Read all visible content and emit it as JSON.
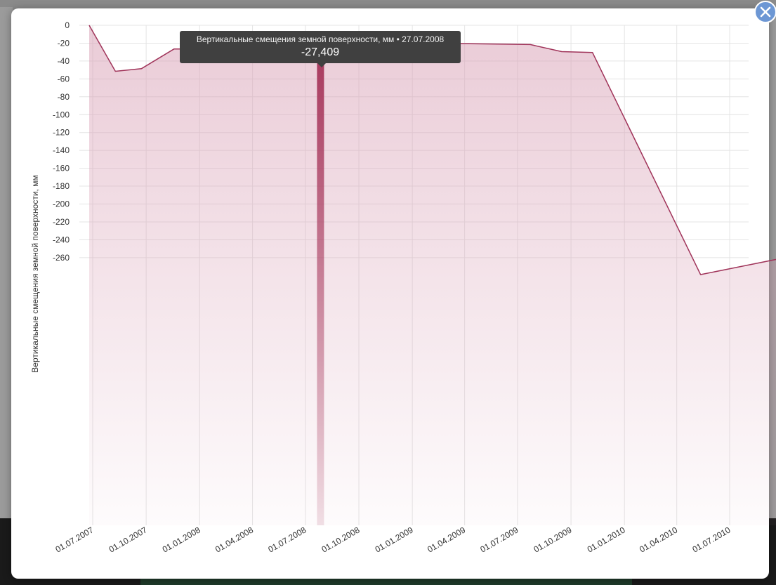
{
  "colors": {
    "series_line": "#a0345a",
    "series_fill": "#dda5bb",
    "highlight_bar": "#a83a5e",
    "grid": "#e4e4e4",
    "tooltip_bg": "#404040",
    "close_button": "#6d97d4"
  },
  "tooltip": {
    "title": "Вертикальные смещения земной поверхности, мм • 27.07.2008",
    "value": "-27,409"
  },
  "close_button": {
    "icon": "close-icon"
  },
  "chart_data": {
    "type": "area",
    "ylabel": "Вертикальные смещения земной поверхности, мм",
    "xlabel": "",
    "ylim": [
      -280,
      0
    ],
    "xlim": [
      "2007-07-01",
      "2010-10-01"
    ],
    "grid": true,
    "y_ticks": [
      "0",
      "-20",
      "-40",
      "-60",
      "-80",
      "-100",
      "-120",
      "-140",
      "-160",
      "-180",
      "-200",
      "-220",
      "-240",
      "-260"
    ],
    "x_ticks": [
      "01.07.2007",
      "01.10.2007",
      "01.01.2008",
      "01.04.2008",
      "01.07.2008",
      "01.10.2008",
      "01.01.2009",
      "01.04.2009",
      "01.07.2009",
      "01.10.2009",
      "01.01.2010",
      "01.04.2010",
      "01.07.2010"
    ],
    "highlight_date": "2008-07-27",
    "series": [
      {
        "points": [
          {
            "x": "2007-06-25",
            "y": 0
          },
          {
            "x": "2007-08-09",
            "y": -51.5
          },
          {
            "x": "2007-09-23",
            "y": -48.5
          },
          {
            "x": "2007-11-18",
            "y": -26.5
          },
          {
            "x": "2008-07-27",
            "y": -27.409
          },
          {
            "x": "2008-09-18",
            "y": -19
          },
          {
            "x": "2009-03-31",
            "y": -20.5
          },
          {
            "x": "2009-07-23",
            "y": -21.5
          },
          {
            "x": "2009-09-15",
            "y": -29.5
          },
          {
            "x": "2009-11-07",
            "y": -30.5
          },
          {
            "x": "2010-05-12",
            "y": -279
          },
          {
            "x": "2010-10-12",
            "y": -259
          }
        ]
      }
    ]
  }
}
